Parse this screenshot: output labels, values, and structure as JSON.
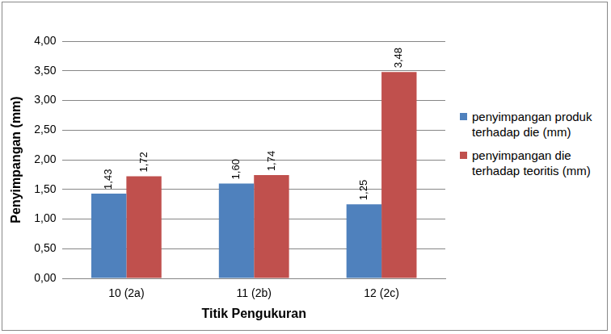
{
  "chart_data": {
    "type": "bar",
    "x_label": "Titik Pengukuran",
    "y_label": "Penyimpangan (mm)",
    "categories": [
      "10 (2a)",
      "11 (2b)",
      "12 (2c)"
    ],
    "series": [
      {
        "name": "penyimpangan produk terhadap die (mm)",
        "color": "#4f81bd",
        "values": [
          1.43,
          1.6,
          1.25
        ],
        "value_labels": [
          "1,43",
          "1,60",
          "1,25"
        ]
      },
      {
        "name": "penyimpangan die terhadap teoritis (mm)",
        "color": "#c0504d",
        "values": [
          1.72,
          1.74,
          3.48
        ],
        "value_labels": [
          "1,72",
          "1,74",
          "3,48"
        ]
      }
    ],
    "ylim": [
      0,
      4
    ],
    "yticks": [
      {
        "value": 0,
        "label": "0,00"
      },
      {
        "value": 0.5,
        "label": "0,50"
      },
      {
        "value": 1,
        "label": "1,00"
      },
      {
        "value": 1.5,
        "label": "1,50"
      },
      {
        "value": 2,
        "label": "2,00"
      },
      {
        "value": 2.5,
        "label": "2,50"
      },
      {
        "value": 3,
        "label": "3,00"
      },
      {
        "value": 3.5,
        "label": "3,50"
      },
      {
        "value": 4,
        "label": "4,00"
      }
    ],
    "grid": true,
    "legend": "right",
    "data_labels": true
  }
}
